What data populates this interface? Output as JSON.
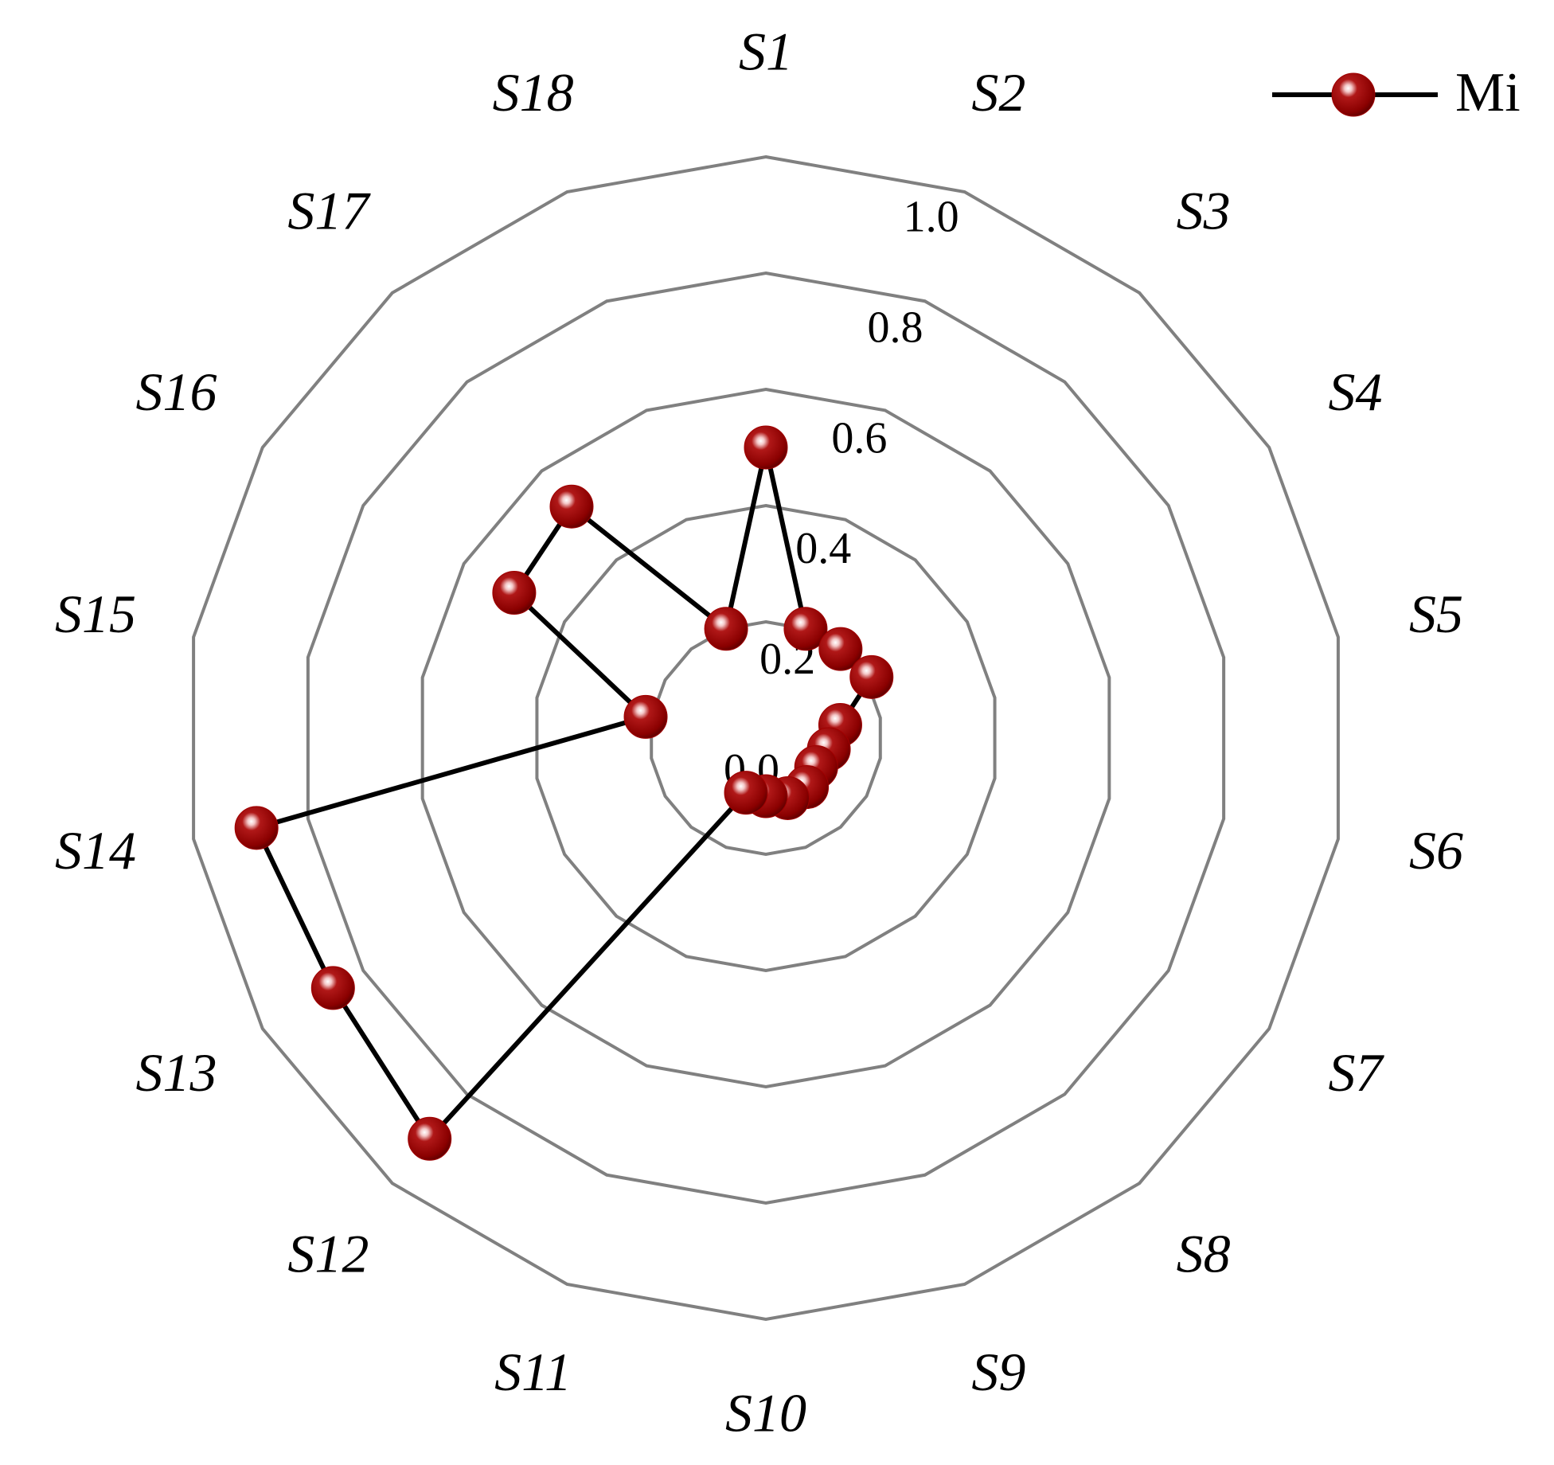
{
  "chart_data": {
    "type": "radar",
    "categories": [
      "S1",
      "S2",
      "S3",
      "S4",
      "S5",
      "S6",
      "S7",
      "S8",
      "S9",
      "S10",
      "S11",
      "S12",
      "S13",
      "S14",
      "S15",
      "S16",
      "S17",
      "S18"
    ],
    "series": [
      {
        "name": "Mi",
        "color": "#a00000",
        "values": [
          0.5,
          0.2,
          0.2,
          0.21,
          0.13,
          0.11,
          0.1,
          0.11,
          0.11,
          0.1,
          0.1,
          0.9,
          0.86,
          0.89,
          0.21,
          0.5,
          0.52,
          0.2
        ]
      }
    ],
    "ylim": [
      0,
      1
    ],
    "yticks": [
      {
        "value": 0,
        "label": "0.0"
      },
      0.2,
      0.4,
      0.6,
      0.8,
      {
        "value": 1,
        "label": "1.0"
      }
    ],
    "grid": true,
    "grid_color": "#808080",
    "line_color": "#000000",
    "legend": "top-right"
  }
}
